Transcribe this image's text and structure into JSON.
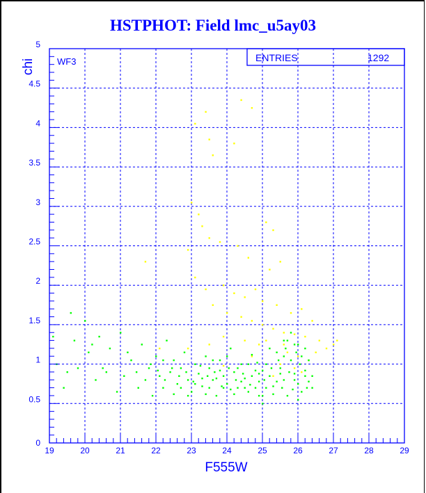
{
  "chart_data": {
    "type": "scatter",
    "title": "HSTPHOT: Field lmc_u5ay03",
    "xlabel": "F555W",
    "ylabel": "chi",
    "xlim": [
      19,
      29
    ],
    "ylim": [
      0,
      5
    ],
    "xticks": [
      "19",
      "20",
      "21",
      "22",
      "23",
      "24",
      "25",
      "26",
      "27",
      "28",
      "29"
    ],
    "yticks": [
      "0",
      "0.5",
      "1",
      "1.5",
      "2",
      "2.5",
      "3",
      "3.5",
      "4",
      "4.5",
      "5"
    ],
    "grid": true,
    "annotation": "WF3",
    "stats_box": {
      "label": "ENTRIES",
      "value": "1292",
      "position": "top-right"
    },
    "colors": {
      "axes": "#0000ff",
      "yellow_series": "#ffff00",
      "green_series": "#00ff00"
    },
    "series": [
      {
        "color": "#ffff00",
        "points": [
          [
            23.1,
            4.05
          ],
          [
            23.4,
            4.2
          ],
          [
            23.5,
            3.85
          ],
          [
            23.6,
            3.65
          ],
          [
            24.4,
            4.35
          ],
          [
            24.7,
            4.25
          ],
          [
            24.2,
            3.8
          ],
          [
            23.0,
            3.05
          ],
          [
            23.2,
            2.9
          ],
          [
            23.3,
            2.75
          ],
          [
            23.5,
            2.6
          ],
          [
            22.9,
            2.45
          ],
          [
            23.8,
            2.55
          ],
          [
            24.3,
            2.5
          ],
          [
            24.6,
            2.35
          ],
          [
            25.1,
            2.8
          ],
          [
            25.3,
            2.7
          ],
          [
            25.5,
            2.3
          ],
          [
            25.2,
            2.2
          ],
          [
            23.1,
            2.1
          ],
          [
            23.4,
            1.95
          ],
          [
            23.9,
            2.0
          ],
          [
            24.2,
            1.9
          ],
          [
            24.5,
            1.85
          ],
          [
            24.8,
            1.95
          ],
          [
            25.0,
            1.8
          ],
          [
            25.4,
            1.75
          ],
          [
            25.8,
            1.65
          ],
          [
            26.1,
            1.7
          ],
          [
            26.4,
            1.55
          ],
          [
            23.6,
            1.75
          ],
          [
            24.0,
            1.65
          ],
          [
            24.4,
            1.6
          ],
          [
            24.7,
            1.55
          ],
          [
            25.0,
            1.5
          ],
          [
            25.3,
            1.45
          ],
          [
            25.6,
            1.4
          ],
          [
            25.9,
            1.38
          ],
          [
            26.2,
            1.35
          ],
          [
            26.6,
            1.3
          ],
          [
            27.0,
            1.25
          ],
          [
            26.8,
            1.2
          ],
          [
            25.1,
            1.3
          ],
          [
            24.9,
            1.25
          ],
          [
            24.5,
            1.3
          ],
          [
            23.9,
            1.35
          ],
          [
            23.5,
            1.25
          ],
          [
            22.9,
            1.2
          ],
          [
            25.7,
            1.15
          ],
          [
            26.0,
            1.1
          ],
          [
            26.3,
            1.05
          ],
          [
            25.5,
            1.0
          ],
          [
            25.9,
            0.95
          ],
          [
            26.1,
            0.9
          ],
          [
            25.6,
            1.25
          ],
          [
            24.7,
            1.1
          ],
          [
            26.5,
            1.15
          ],
          [
            27.1,
            1.3
          ],
          [
            22.1,
            1.2
          ],
          [
            21.7,
            2.3
          ],
          [
            23.9,
            0.98
          ],
          [
            25.3,
            0.85
          ]
        ]
      },
      {
        "color": "#00ff00",
        "points": [
          [
            19.1,
            1.35
          ],
          [
            19.2,
            1.0
          ],
          [
            19.4,
            0.7
          ],
          [
            19.5,
            0.9
          ],
          [
            19.6,
            1.65
          ],
          [
            19.7,
            1.3
          ],
          [
            19.8,
            0.95
          ],
          [
            20.0,
            1.55
          ],
          [
            20.1,
            1.15
          ],
          [
            20.3,
            0.8
          ],
          [
            20.4,
            1.35
          ],
          [
            20.5,
            0.95
          ],
          [
            20.7,
            1.2
          ],
          [
            20.9,
            0.65
          ],
          [
            21.0,
            1.4
          ],
          [
            21.1,
            0.85
          ],
          [
            21.3,
            1.05
          ],
          [
            21.5,
            0.7
          ],
          [
            21.6,
            1.25
          ],
          [
            21.8,
            0.95
          ],
          [
            21.9,
            0.6
          ],
          [
            22.0,
            1.1
          ],
          [
            22.1,
            0.85
          ],
          [
            22.2,
            0.7
          ],
          [
            22.3,
            1.3
          ],
          [
            22.4,
            0.9
          ],
          [
            22.5,
            1.05
          ],
          [
            22.6,
            0.75
          ],
          [
            22.7,
            0.95
          ],
          [
            22.8,
            1.15
          ],
          [
            22.9,
            0.8
          ],
          [
            23.0,
            0.65
          ],
          [
            23.1,
            1.0
          ],
          [
            23.2,
            0.88
          ],
          [
            23.3,
            0.72
          ],
          [
            23.4,
            1.1
          ],
          [
            23.5,
            0.95
          ],
          [
            23.6,
            0.8
          ],
          [
            23.7,
            0.6
          ],
          [
            23.8,
            1.05
          ],
          [
            23.9,
            0.85
          ],
          [
            24.0,
            0.75
          ],
          [
            24.1,
            1.2
          ],
          [
            24.2,
            0.9
          ],
          [
            24.3,
            0.7
          ],
          [
            24.4,
            1.0
          ],
          [
            24.5,
            0.82
          ],
          [
            24.6,
            0.65
          ],
          [
            24.7,
            1.12
          ],
          [
            24.8,
            0.92
          ],
          [
            24.9,
            0.78
          ],
          [
            25.0,
            0.6
          ],
          [
            25.1,
            1.0
          ],
          [
            25.2,
            0.85
          ],
          [
            25.3,
            0.72
          ],
          [
            25.4,
            1.15
          ],
          [
            25.5,
            0.95
          ],
          [
            25.6,
            0.8
          ],
          [
            25.7,
            1.3
          ],
          [
            25.8,
            1.05
          ],
          [
            25.9,
            0.88
          ],
          [
            26.0,
            0.75
          ],
          [
            26.1,
            1.1
          ],
          [
            26.2,
            0.92
          ],
          [
            26.3,
            0.78
          ],
          [
            26.4,
            0.85
          ],
          [
            25.65,
            1.2
          ],
          [
            25.85,
            0.68
          ],
          [
            26.05,
            1.0
          ],
          [
            26.25,
            0.7
          ],
          [
            25.95,
            1.15
          ],
          [
            25.75,
            0.9
          ],
          [
            25.55,
            0.7
          ],
          [
            25.45,
            1.05
          ],
          [
            25.25,
            0.95
          ],
          [
            25.05,
            0.8
          ],
          [
            24.85,
            1.02
          ],
          [
            24.65,
            0.74
          ],
          [
            24.45,
            0.88
          ],
          [
            24.25,
            0.8
          ],
          [
            24.05,
            0.95
          ],
          [
            23.85,
            0.72
          ],
          [
            23.65,
            0.9
          ],
          [
            23.45,
            0.85
          ],
          [
            23.25,
            0.98
          ],
          [
            23.05,
            0.78
          ],
          [
            22.85,
            0.9
          ],
          [
            22.65,
            0.85
          ],
          [
            22.45,
            0.95
          ],
          [
            22.25,
            0.8
          ],
          [
            22.05,
            0.92
          ],
          [
            21.85,
            1.0
          ],
          [
            21.45,
            0.9
          ],
          [
            21.2,
            1.15
          ],
          [
            20.6,
            0.9
          ],
          [
            20.2,
            1.25
          ],
          [
            25.9,
            1.25
          ],
          [
            26.1,
            0.65
          ],
          [
            26.3,
            1.05
          ],
          [
            25.7,
            0.6
          ],
          [
            25.5,
            0.88
          ],
          [
            25.3,
            0.62
          ],
          [
            25.1,
            0.7
          ],
          [
            24.9,
            0.6
          ],
          [
            24.7,
            0.85
          ],
          [
            24.5,
            0.7
          ],
          [
            24.3,
            0.95
          ],
          [
            24.1,
            0.68
          ],
          [
            23.9,
            0.7
          ],
          [
            23.7,
            0.82
          ],
          [
            23.5,
            0.7
          ],
          [
            23.3,
            0.82
          ],
          [
            23.1,
            0.75
          ],
          [
            22.9,
            0.6
          ],
          [
            22.7,
            0.7
          ],
          [
            22.5,
            0.62
          ],
          [
            26.2,
            1.2
          ],
          [
            26.0,
            1.25
          ],
          [
            25.8,
            1.4
          ],
          [
            25.6,
            1.3
          ],
          [
            24.0,
            1.1
          ],
          [
            24.6,
            1.0
          ],
          [
            25.2,
            1.2
          ],
          [
            23.6,
            1.05
          ],
          [
            22.2,
            1.05
          ],
          [
            21.7,
            0.8
          ],
          [
            26.4,
            0.7
          ],
          [
            25.4,
            0.78
          ],
          [
            24.8,
            0.7
          ],
          [
            24.2,
            0.62
          ],
          [
            23.4,
            0.62
          ],
          [
            25.0,
            0.92
          ],
          [
            25.9,
            0.8
          ],
          [
            26.2,
            0.85
          ],
          [
            25.6,
            1.1
          ],
          [
            24.4,
            0.78
          ],
          [
            25.0,
            0.5
          ],
          [
            26.0,
            0.55
          ],
          [
            23.8,
            0.92
          ],
          [
            24.9,
            0.88
          ]
        ]
      }
    ]
  }
}
